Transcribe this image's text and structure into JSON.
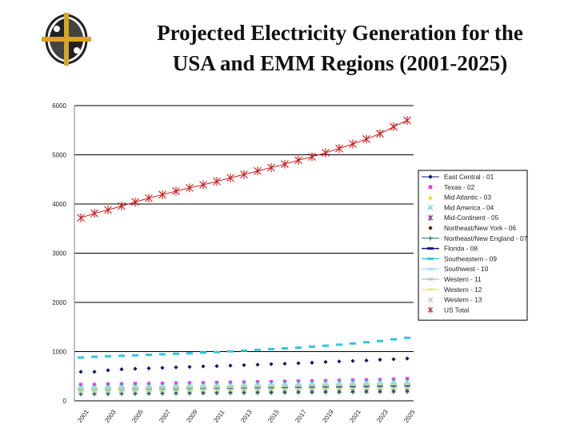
{
  "header": {
    "title_line1": "Projected Electricity Generation for the",
    "title_line2": "USA and EMM Regions (2001-2025)"
  },
  "colors": {
    "logo_gold": "#d9a421",
    "logo_dark": "#222222",
    "gridline": "#000000",
    "axis": "#808080"
  },
  "chart_data": {
    "type": "line",
    "title": "Projected Electricity Generation for the USA and EMM Regions (2001-2025)",
    "xlabel": "",
    "ylabel": "",
    "ylim": [
      0,
      6000
    ],
    "yticks": [
      0,
      1000,
      2000,
      3000,
      4000,
      5000,
      6000
    ],
    "grid": "horizontal",
    "legend_position": "right",
    "x": [
      2001,
      2002,
      2003,
      2004,
      2005,
      2006,
      2007,
      2008,
      2009,
      2010,
      2011,
      2012,
      2013,
      2014,
      2015,
      2016,
      2017,
      2018,
      2019,
      2020,
      2021,
      2022,
      2023,
      2024,
      2025
    ],
    "x_tick_labels": [
      "2001",
      "2003",
      "2005",
      "2007",
      "2009",
      "2011",
      "2013",
      "2015",
      "2017",
      "2019",
      "2021",
      "2023",
      "2025"
    ],
    "series": [
      {
        "name": "East Central - 01",
        "color": "#0a1a6e",
        "marker": "diamond",
        "line": false,
        "values": [
          590,
          590,
          620,
          640,
          650,
          660,
          670,
          680,
          690,
          700,
          705,
          715,
          725,
          735,
          745,
          755,
          765,
          775,
          790,
          800,
          810,
          820,
          835,
          845,
          860
        ]
      },
      {
        "name": "Texas - 02",
        "color": "#e040e0",
        "marker": "square",
        "line": false,
        "values": [
          330,
          330,
          340,
          345,
          350,
          350,
          355,
          360,
          365,
          365,
          370,
          375,
          380,
          385,
          390,
          395,
          400,
          405,
          410,
          415,
          420,
          425,
          430,
          440,
          450
        ]
      },
      {
        "name": "Mid Atlantic - 03",
        "color": "#e8e000",
        "marker": "triangle",
        "line": false,
        "values": [
          250,
          255,
          260,
          265,
          265,
          270,
          275,
          280,
          280,
          285,
          290,
          295,
          300,
          305,
          305,
          310,
          315,
          320,
          325,
          330,
          335,
          340,
          345,
          350,
          355
        ]
      },
      {
        "name": "Mid America - 04",
        "color": "#3dd6e8",
        "marker": "x",
        "line": false,
        "values": [
          280,
          285,
          290,
          295,
          300,
          305,
          310,
          315,
          320,
          325,
          330,
          335,
          340,
          345,
          350,
          355,
          360,
          365,
          370,
          375,
          380,
          385,
          390,
          395,
          400
        ]
      },
      {
        "name": "Mid-Continent - 05",
        "color": "#7a1f7a",
        "marker": "star",
        "line": false,
        "values": [
          210,
          212,
          215,
          218,
          220,
          222,
          225,
          228,
          230,
          233,
          236,
          239,
          242,
          245,
          248,
          251,
          254,
          257,
          260,
          263,
          266,
          269,
          272,
          275,
          278
        ]
      },
      {
        "name": "Northeast/New York - 06",
        "color": "#6b2a10",
        "marker": "circle",
        "line": false,
        "values": [
          150,
          150,
          152,
          155,
          155,
          158,
          160,
          162,
          165,
          165,
          168,
          170,
          172,
          175,
          175,
          178,
          180,
          182,
          185,
          185,
          188,
          190,
          192,
          195,
          198
        ]
      },
      {
        "name": "Northeast/New England - 07",
        "color": "#1f6e6e",
        "marker": "plus",
        "line": false,
        "values": [
          130,
          132,
          135,
          137,
          140,
          142,
          144,
          146,
          148,
          150,
          152,
          154,
          156,
          158,
          160,
          162,
          164,
          166,
          168,
          170,
          172,
          174,
          176,
          178,
          180
        ]
      },
      {
        "name": "Florida - 08",
        "color": "#0a1a8a",
        "marker": "dash",
        "line": false,
        "values": [
          200,
          205,
          210,
          215,
          220,
          225,
          230,
          235,
          240,
          245,
          250,
          255,
          260,
          265,
          270,
          275,
          280,
          285,
          290,
          295,
          300,
          305,
          310,
          315,
          320
        ]
      },
      {
        "name": "Southeastern - 09",
        "color": "#2ec8e0",
        "marker": "dash",
        "line": false,
        "values": [
          880,
          895,
          905,
          915,
          925,
          935,
          945,
          955,
          965,
          980,
          990,
          1005,
          1020,
          1035,
          1050,
          1065,
          1080,
          1100,
          1120,
          1140,
          1165,
          1190,
          1215,
          1250,
          1280
        ]
      },
      {
        "name": "Southwest - 10",
        "color": "#b0dcec",
        "marker": "dash",
        "line": false,
        "values": [
          260,
          265,
          268,
          272,
          276,
          280,
          284,
          288,
          292,
          296,
          300,
          304,
          308,
          312,
          316,
          320,
          324,
          328,
          332,
          336,
          340,
          344,
          348,
          352,
          356
        ]
      },
      {
        "name": "Western - 11",
        "color": "#aad8aa",
        "marker": "dash",
        "line": false,
        "values": [
          240,
          244,
          248,
          252,
          256,
          260,
          264,
          268,
          272,
          276,
          280,
          284,
          288,
          292,
          296,
          300,
          304,
          308,
          312,
          316,
          320,
          324,
          328,
          332,
          336
        ]
      },
      {
        "name": "Western - 12",
        "color": "#e8e890",
        "marker": "dash",
        "line": false,
        "values": [
          190,
          193,
          196,
          199,
          202,
          205,
          208,
          211,
          214,
          217,
          220,
          223,
          226,
          229,
          232,
          235,
          238,
          241,
          244,
          247,
          250,
          253,
          256,
          259,
          262
        ]
      },
      {
        "name": "Western - 13",
        "color": "#9ec6d6",
        "marker": "x",
        "line": false,
        "values": [
          180,
          183,
          186,
          189,
          192,
          195,
          198,
          201,
          204,
          207,
          210,
          213,
          216,
          219,
          222,
          225,
          228,
          231,
          234,
          237,
          240,
          243,
          246,
          249,
          252
        ]
      },
      {
        "name": "US Total",
        "color": "#c8201e",
        "marker": "star",
        "line": true,
        "values": [
          3720,
          3810,
          3880,
          3960,
          4040,
          4120,
          4190,
          4260,
          4330,
          4390,
          4460,
          4530,
          4600,
          4670,
          4740,
          4810,
          4890,
          4960,
          5040,
          5130,
          5220,
          5320,
          5430,
          5570,
          5700
        ]
      }
    ]
  }
}
